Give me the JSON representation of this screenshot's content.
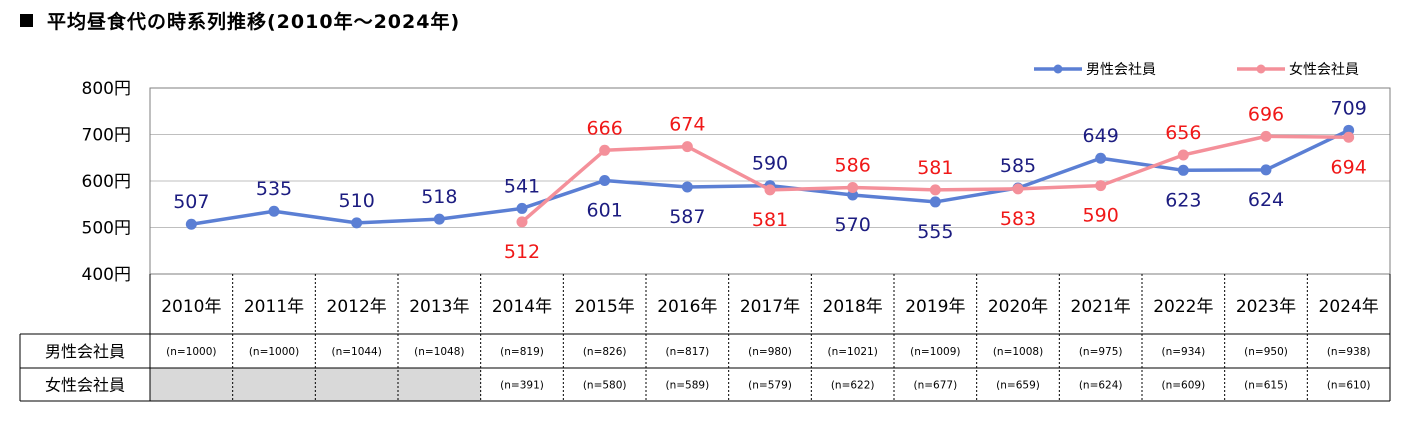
{
  "title": "平均昼食代の時系列推移(2010年～2024年)",
  "colors": {
    "male_line": "#5b7fd4",
    "female_line": "#f4909a",
    "male_text": "#1c1c80",
    "female_text": "#f01818",
    "grid": "#bfbfbf",
    "empty_cell": "#d9d9d9"
  },
  "chart_data": {
    "type": "line",
    "categories": [
      "2010年",
      "2011年",
      "2012年",
      "2013年",
      "2014年",
      "2015年",
      "2016年",
      "2017年",
      "2018年",
      "2019年",
      "2020年",
      "2021年",
      "2022年",
      "2023年",
      "2024年"
    ],
    "yticks": [
      "800円",
      "700円",
      "600円",
      "500円",
      "400円"
    ],
    "ylim": [
      400,
      800
    ],
    "legend_position": "top-right",
    "series": [
      {
        "name": "男性会社員",
        "values": [
          507,
          535,
          510,
          518,
          541,
          601,
          587,
          590,
          570,
          555,
          585,
          649,
          623,
          624,
          709
        ]
      },
      {
        "name": "女性会社員",
        "values": [
          null,
          null,
          null,
          null,
          512,
          666,
          674,
          581,
          586,
          581,
          583,
          590,
          656,
          696,
          694
        ]
      }
    ]
  },
  "table": {
    "rows": [
      {
        "label": "男性会社員",
        "n": [
          "(n=1000)",
          "(n=1000)",
          "(n=1044)",
          "(n=1048)",
          "(n=819)",
          "(n=826)",
          "(n=817)",
          "(n=980)",
          "(n=1021)",
          "(n=1009)",
          "(n=1008)",
          "(n=975)",
          "(n=934)",
          "(n=950)",
          "(n=938)"
        ]
      },
      {
        "label": "女性会社員",
        "n": [
          "",
          "",
          "",
          "",
          "(n=391)",
          "(n=580)",
          "(n=589)",
          "(n=579)",
          "(n=622)",
          "(n=677)",
          "(n=659)",
          "(n=624)",
          "(n=609)",
          "(n=615)",
          "(n=610)"
        ]
      }
    ]
  }
}
